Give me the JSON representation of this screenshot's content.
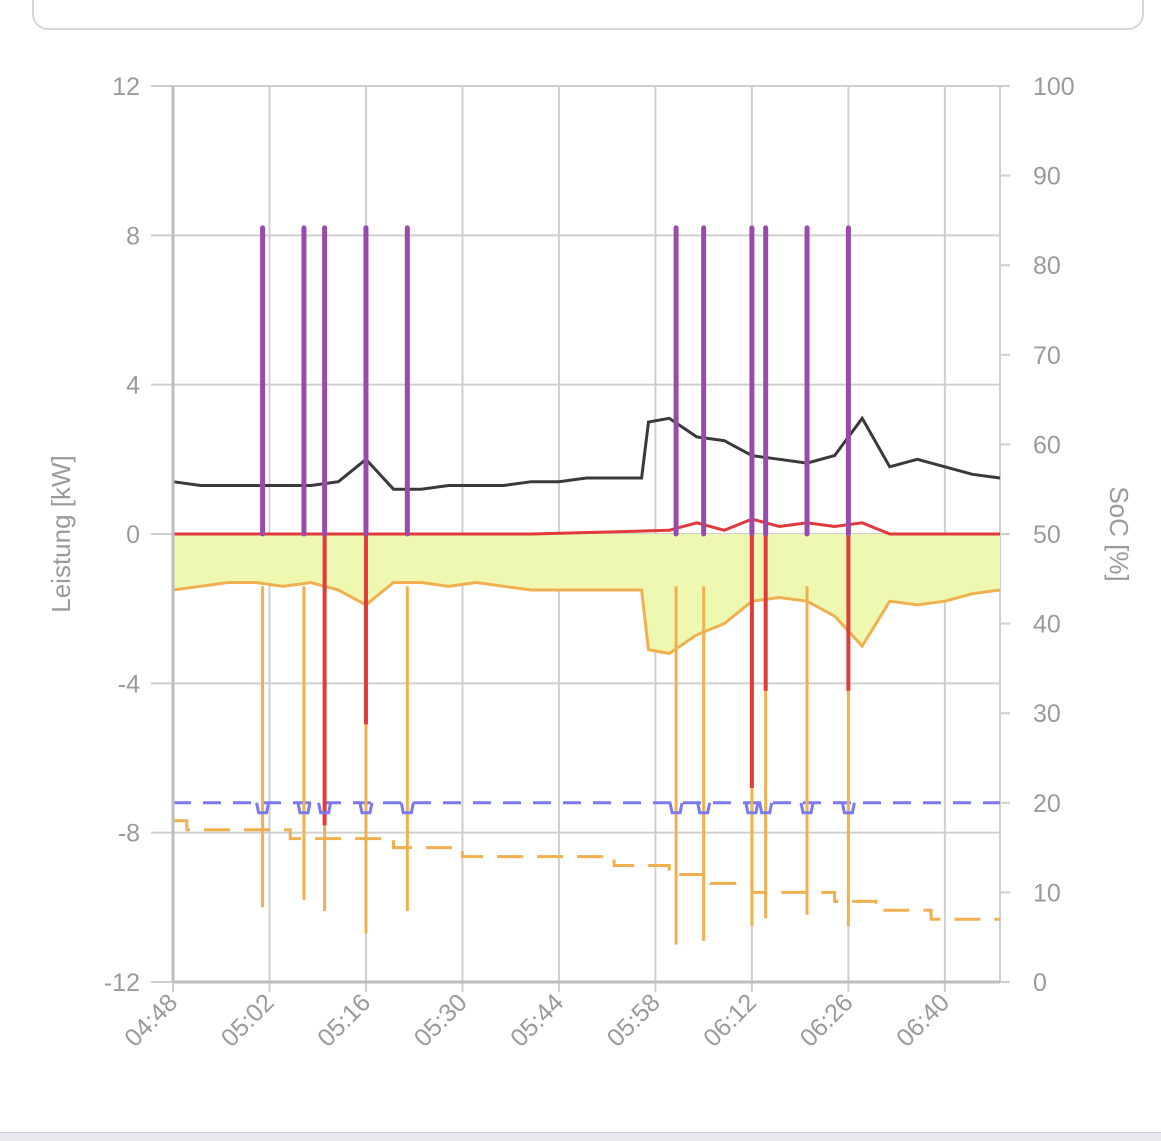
{
  "header": {
    "label": ""
  },
  "chart_data": {
    "type": "line",
    "title": "",
    "xlabel": "",
    "ylabel": "Leistung [kW]",
    "y2label": "SoC [%]",
    "ylim": [
      -12,
      12
    ],
    "y2lim": [
      0,
      100
    ],
    "xticks": [
      "04:48",
      "05:02",
      "05:16",
      "05:30",
      "05:44",
      "05:58",
      "06:12",
      "06:26",
      "06:40"
    ],
    "yticks": [
      12,
      8,
      4,
      0,
      -4,
      -8,
      -12
    ],
    "y2ticks": [
      100,
      90,
      80,
      70,
      60,
      50,
      40,
      30,
      20,
      10,
      0
    ],
    "grid": true,
    "legend": "none",
    "colors": {
      "load": "#3a3a3a",
      "battery": "#e03a3a",
      "pv": "#f0b050",
      "pv_fill": "#eef8b0",
      "charger": "#9a4aaa",
      "soc_a": "#7a7aee",
      "soc_b": "#f0b050"
    },
    "series": [
      {
        "axis": "left",
        "x": [
          "04:48",
          "04:52",
          "04:56",
          "05:00",
          "05:04",
          "05:08",
          "05:12",
          "05:16",
          "05:20",
          "05:24",
          "05:28",
          "05:32",
          "05:36",
          "05:40",
          "05:44",
          "05:48",
          "05:52",
          "05:56",
          "05:57",
          "06:00",
          "06:04",
          "06:08",
          "06:12",
          "06:16",
          "06:20",
          "06:24",
          "06:28",
          "06:32",
          "06:36",
          "06:40",
          "06:44",
          "06:48"
        ],
        "values": [
          1.4,
          1.3,
          1.3,
          1.3,
          1.3,
          1.3,
          1.4,
          2.0,
          1.2,
          1.2,
          1.3,
          1.3,
          1.3,
          1.4,
          1.4,
          1.5,
          1.5,
          1.5,
          3.0,
          3.1,
          2.6,
          2.5,
          2.1,
          2.0,
          1.9,
          2.1,
          3.1,
          1.8,
          2.0,
          1.8,
          1.6,
          1.5
        ]
      },
      {
        "axis": "left",
        "x": [
          "04:48",
          "05:10",
          "05:20",
          "05:40",
          "06:00",
          "06:04",
          "06:08",
          "06:12",
          "06:16",
          "06:20",
          "06:24",
          "06:28",
          "06:32",
          "06:48"
        ],
        "values": [
          0,
          0,
          0,
          0,
          0.1,
          0.3,
          0.1,
          0.4,
          0.2,
          0.3,
          0.2,
          0.3,
          0,
          0
        ]
      },
      {
        "axis": "left",
        "x": [
          "04:48",
          "04:52",
          "04:56",
          "05:00",
          "05:04",
          "05:08",
          "05:12",
          "05:16",
          "05:20",
          "05:24",
          "05:28",
          "05:32",
          "05:36",
          "05:40",
          "05:44",
          "05:48",
          "05:52",
          "05:56",
          "05:57",
          "06:00",
          "06:04",
          "06:08",
          "06:12",
          "06:16",
          "06:20",
          "06:24",
          "06:28",
          "06:32",
          "06:36",
          "06:40",
          "06:44",
          "06:48"
        ],
        "values": [
          -1.5,
          -1.4,
          -1.3,
          -1.3,
          -1.4,
          -1.3,
          -1.5,
          -1.9,
          -1.3,
          -1.3,
          -1.4,
          -1.3,
          -1.4,
          -1.5,
          -1.5,
          -1.5,
          -1.5,
          -1.5,
          -3.1,
          -3.2,
          -2.7,
          -2.4,
          -1.8,
          -1.7,
          -1.8,
          -2.2,
          -3.0,
          -1.8,
          -1.9,
          -1.8,
          -1.6,
          -1.5
        ],
        "filled": true
      },
      {
        "axis": "left",
        "x": [
          "05:01",
          "05:07",
          "05:10",
          "05:16",
          "05:22",
          "06:01",
          "06:05",
          "06:12",
          "06:14",
          "06:20",
          "06:26"
        ],
        "values": [
          8.2,
          8.2,
          8.2,
          8.2,
          8.2,
          8.2,
          8.2,
          8.2,
          8.2,
          8.2,
          8.2
        ],
        "spikes": true
      },
      {
        "axis": "left",
        "x": [
          "05:01",
          "05:07",
          "05:10",
          "05:16",
          "05:22",
          "06:01",
          "06:05",
          "06:12",
          "06:14",
          "06:20",
          "06:26"
        ],
        "values": [
          -10.0,
          -9.8,
          -10.1,
          -10.7,
          -10.1,
          -11.0,
          -10.9,
          -10.5,
          -10.3,
          -10.2,
          -10.5
        ],
        "spikes": true
      },
      {
        "axis": "left",
        "x": [
          "05:10",
          "05:16",
          "06:12",
          "06:14",
          "06:26"
        ],
        "values": [
          -7.8,
          -5.1,
          -6.8,
          -4.2,
          -4.2
        ],
        "spikes": true
      },
      {
        "axis": "right",
        "dashed": true,
        "x": [
          "04:48",
          "06:48"
        ],
        "values": [
          20,
          20
        ]
      },
      {
        "axis": "right",
        "dashed": true,
        "x": [
          "04:48",
          "04:50",
          "05:02",
          "05:05",
          "05:20",
          "05:30",
          "05:44",
          "05:52",
          "06:00",
          "06:06",
          "06:12",
          "06:18",
          "06:24",
          "06:30",
          "06:38",
          "06:48"
        ],
        "values": [
          18,
          17,
          17,
          16,
          15,
          14,
          14,
          13,
          12,
          11,
          10,
          10,
          9,
          8,
          7,
          7
        ]
      }
    ]
  }
}
